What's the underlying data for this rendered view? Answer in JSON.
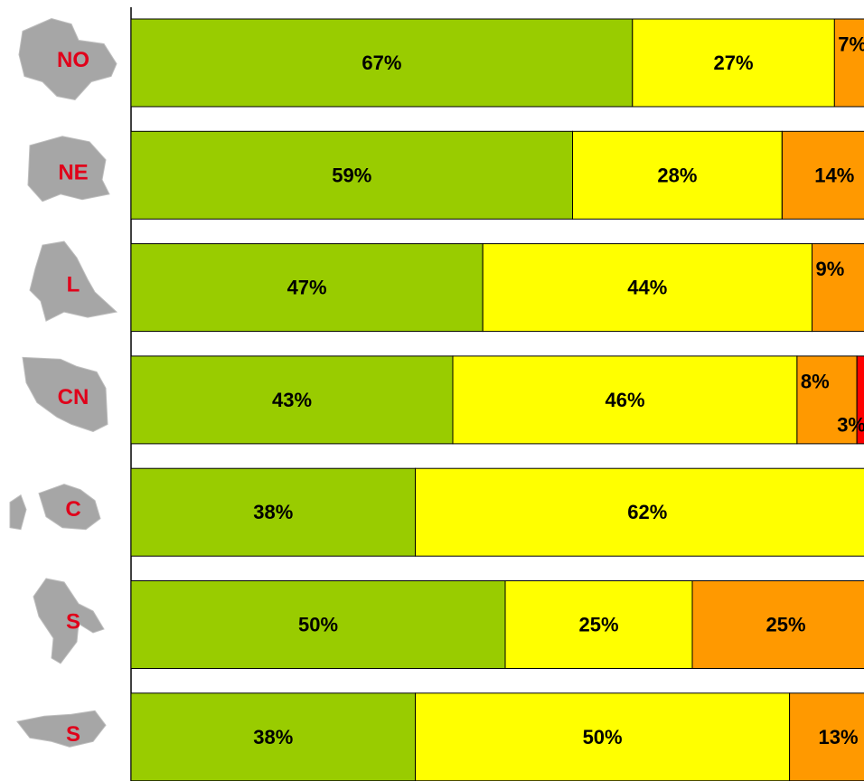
{
  "chart_data": {
    "type": "bar",
    "orientation": "horizontal",
    "stacked": true,
    "categories": [
      "NO",
      "NE",
      "L",
      "CN",
      "C",
      "S",
      "S"
    ],
    "series": [
      {
        "color": "#99cc00",
        "values": [
          67,
          59,
          47,
          43,
          38,
          50,
          38
        ],
        "labels": [
          "67%",
          "59%",
          "47%",
          "43%",
          "38%",
          "50%",
          "38%"
        ]
      },
      {
        "color": "#ffff00",
        "values": [
          27,
          28,
          44,
          46,
          62,
          25,
          50
        ],
        "labels": [
          "27%",
          "28%",
          "44%",
          "46%",
          "62%",
          "25%",
          "50%"
        ]
      },
      {
        "color": "#ff9900",
        "values": [
          7,
          14,
          9,
          8,
          0,
          25,
          13
        ],
        "labels": [
          "7%",
          "14%",
          "9%",
          "8%",
          "",
          "25%",
          "13%"
        ]
      },
      {
        "color": "#ff0000",
        "values": [
          0,
          0,
          0,
          3,
          0,
          0,
          0
        ],
        "labels": [
          "",
          "",
          "",
          "3%",
          "",
          "",
          ""
        ]
      }
    ],
    "xlim": [
      0,
      100
    ],
    "grid": false,
    "legend": "none",
    "map_icon_color": "#a6a6a6"
  }
}
